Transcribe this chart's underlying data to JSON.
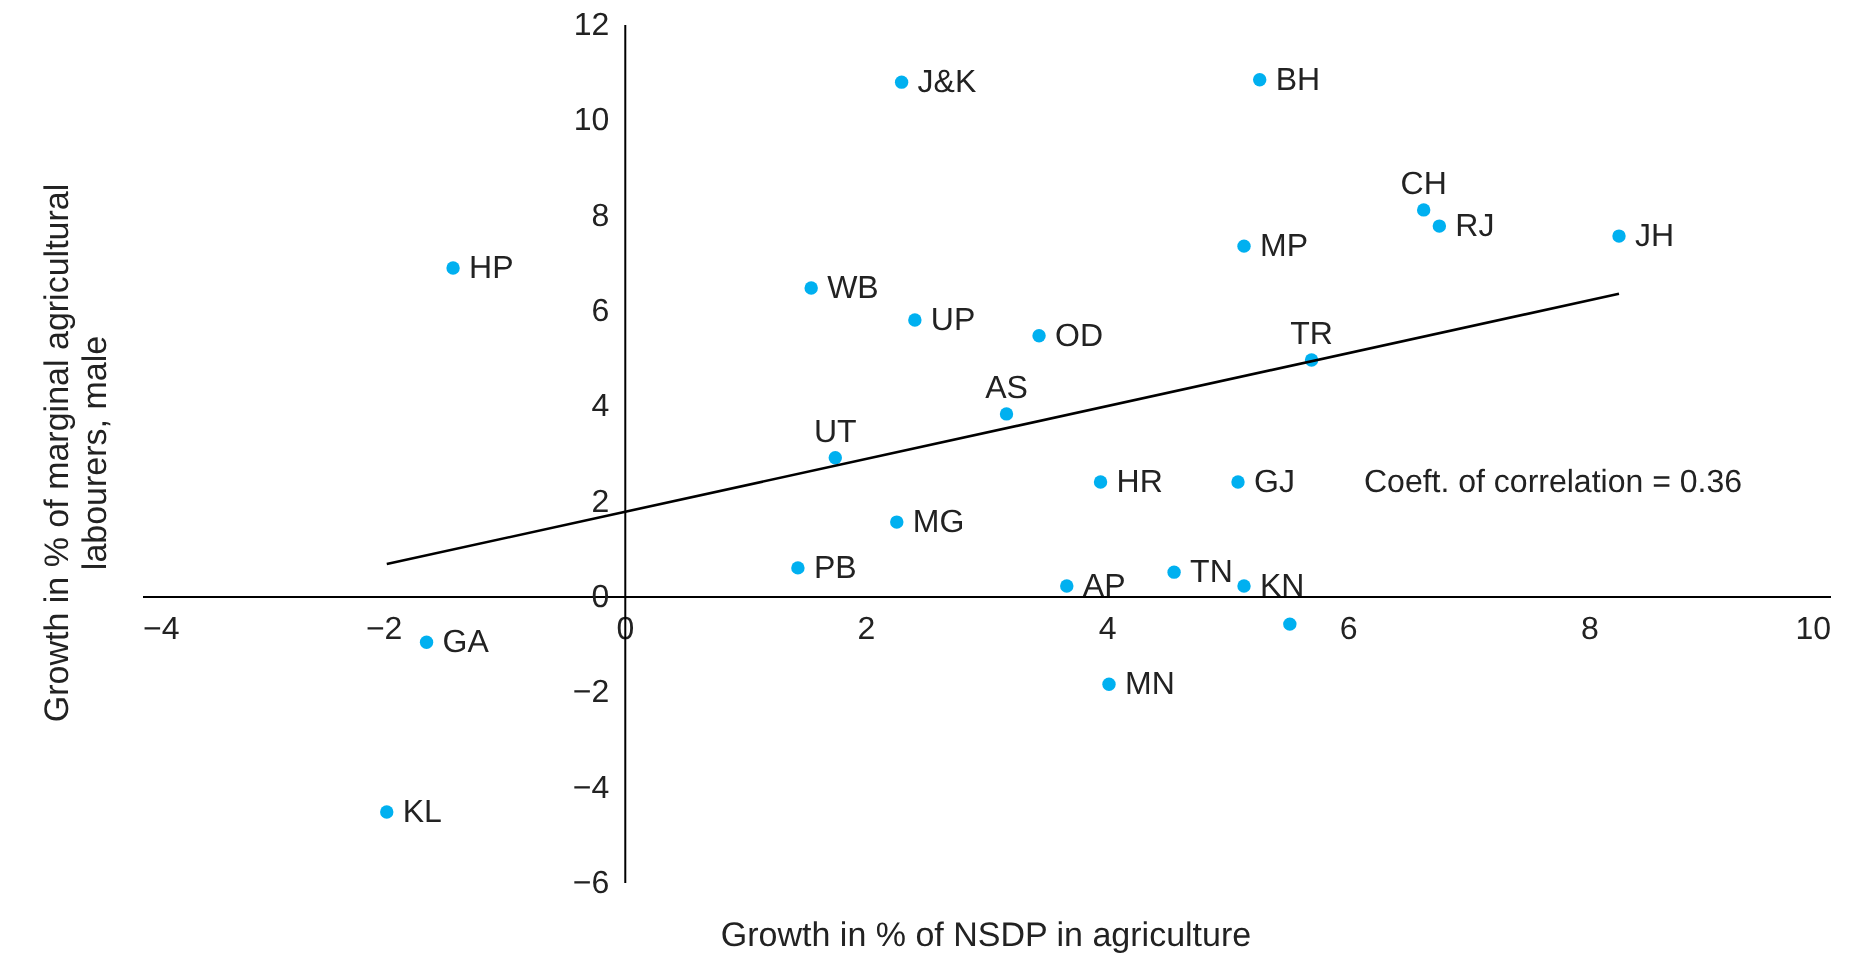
{
  "chart_data": {
    "type": "scatter",
    "xlabel": "Growth in % of NSDP in agriculture",
    "ylabel": "Growth in % of marginal agricultural labourers, male",
    "xlim": [
      -4,
      10
    ],
    "ylim": [
      -6,
      12
    ],
    "xticks": [
      -4,
      -2,
      0,
      2,
      4,
      6,
      8,
      10
    ],
    "yticks": [
      -6,
      -4,
      -2,
      0,
      2,
      4,
      6,
      8,
      10,
      12
    ],
    "grid": false,
    "series": [
      {
        "marker": "circle",
        "color": "#00b0f0",
        "x": [
          2.3,
          5.27,
          -1.42,
          1.55,
          2.41,
          3.44,
          5.14,
          6.63,
          6.76,
          8.25,
          5.7,
          3.17,
          1.75,
          3.95,
          5.09,
          2.26,
          1.44,
          3.67,
          4.56,
          5.14,
          5.52,
          -1.64,
          4.02,
          -1.97
        ],
        "values": [
          10.78,
          10.83,
          6.88,
          6.46,
          5.79,
          5.46,
          7.34,
          8.1,
          7.76,
          7.55,
          4.95,
          3.82,
          2.9,
          2.39,
          2.39,
          1.55,
          0.59,
          0.21,
          0.5,
          0.21,
          -0.59,
          -0.97,
          -1.85,
          -4.53
        ]
      },
      {
        "type": "line",
        "color": "#000000",
        "x": [
          -1.97,
          8.25
        ],
        "values": [
          0.67,
          6.34
        ]
      }
    ],
    "annotations": [
      {
        "text": "J&K",
        "x": 2.3,
        "y": 10.78
      },
      {
        "text": "BH",
        "x": 5.27,
        "y": 10.83
      },
      {
        "text": "HP",
        "x": -1.42,
        "y": 6.88
      },
      {
        "text": "WB",
        "x": 1.55,
        "y": 6.46
      },
      {
        "text": "UP",
        "x": 2.41,
        "y": 5.79
      },
      {
        "text": "OD",
        "x": 3.44,
        "y": 5.46
      },
      {
        "text": "MP",
        "x": 5.14,
        "y": 7.34
      },
      {
        "text": "CH",
        "x": 6.63,
        "y": 8.1
      },
      {
        "text": "RJ",
        "x": 6.76,
        "y": 7.76
      },
      {
        "text": "JH",
        "x": 8.25,
        "y": 7.55
      },
      {
        "text": "TR",
        "x": 5.7,
        "y": 4.95
      },
      {
        "text": "AS",
        "x": 3.17,
        "y": 3.82
      },
      {
        "text": "UT",
        "x": 1.75,
        "y": 2.9
      },
      {
        "text": "HR",
        "x": 3.95,
        "y": 2.39
      },
      {
        "text": "GJ",
        "x": 5.09,
        "y": 2.39
      },
      {
        "text": "MG",
        "x": 2.26,
        "y": 1.55
      },
      {
        "text": "PB",
        "x": 1.44,
        "y": 0.59
      },
      {
        "text": "AP",
        "x": 3.67,
        "y": 0.21
      },
      {
        "text": "TN",
        "x": 4.56,
        "y": 0.5
      },
      {
        "text": "KN",
        "x": 5.14,
        "y": 0.21
      },
      {
        "text": "GA",
        "x": -1.64,
        "y": -0.97
      },
      {
        "text": "MN",
        "x": 4.02,
        "y": -1.85
      },
      {
        "text": "KL",
        "x": -1.97,
        "y": -4.53
      },
      "Coeft. of correlation = 0.36"
    ]
  }
}
